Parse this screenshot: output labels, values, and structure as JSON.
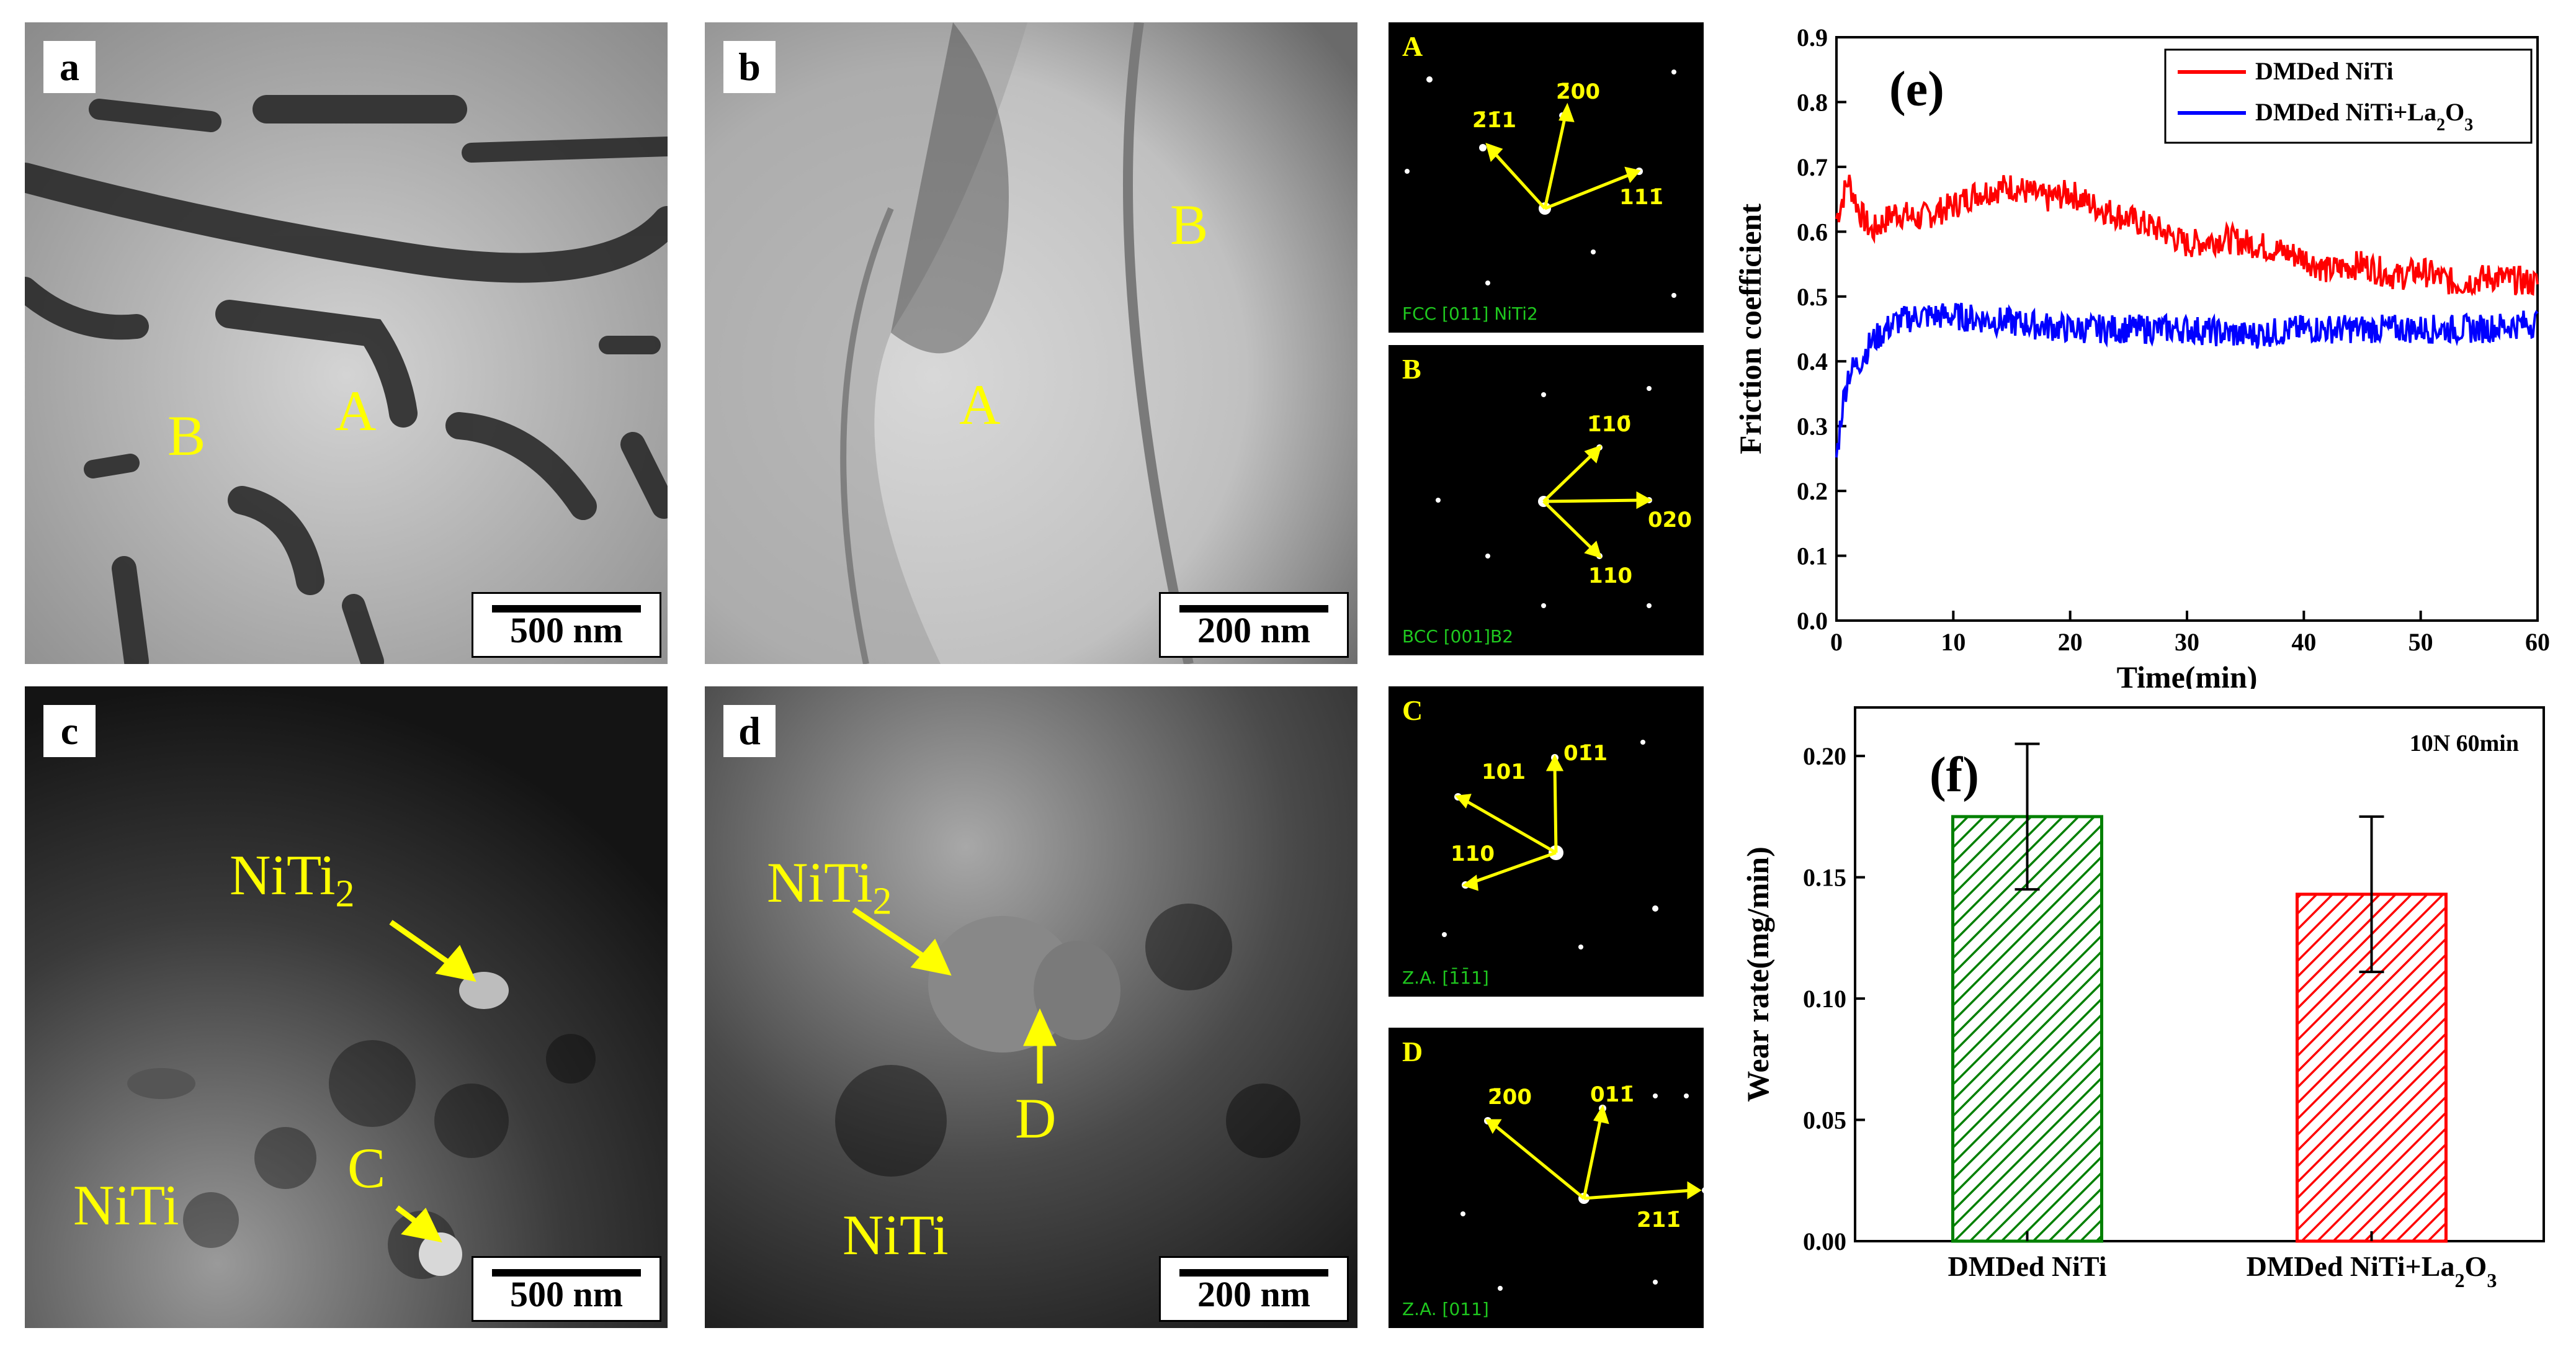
{
  "panels": {
    "a": {
      "label": "a",
      "markers": [
        "B",
        "A"
      ],
      "scale": "500 nm"
    },
    "b": {
      "label": "b",
      "markers": [
        "B",
        "A"
      ],
      "scale": "200 nm"
    },
    "c": {
      "label": "c",
      "markers": [
        "NiTi2",
        "NiTi",
        "C"
      ],
      "scale": "500 nm"
    },
    "d": {
      "label": "d",
      "markers": [
        "NiTi2",
        "D",
        "NiTi"
      ],
      "scale": "200 nm"
    }
  },
  "saed": {
    "A": {
      "letter": "A",
      "zone": "FCC [011] NiTi2",
      "indices": [
        "2̄1̄1",
        "2̄00",
        "111̄"
      ]
    },
    "B": {
      "letter": "B",
      "zone": "BCC [001]B2",
      "indices": [
        "1̄10̄",
        "020",
        "110"
      ]
    },
    "C": {
      "letter": "C",
      "zone": "Z.A. [1̄1̄1]",
      "indices": [
        "101",
        "01̄1",
        "110"
      ]
    },
    "D": {
      "letter": "D",
      "zone": "Z.A. [011]",
      "indices": [
        "2̄00",
        "011̄",
        "211̄"
      ]
    }
  },
  "chart_data": [
    {
      "type": "line",
      "panel_label": "(e)",
      "xlabel": "Time(min)",
      "ylabel": "Friction coefficient",
      "xlim": [
        0,
        60
      ],
      "ylim": [
        0,
        0.9
      ],
      "xticks": [
        "0",
        "10",
        "20",
        "30",
        "40",
        "50",
        "60"
      ],
      "yticks": [
        "0.0",
        "0.1",
        "0.2",
        "0.3",
        "0.4",
        "0.5",
        "0.6",
        "0.7",
        "0.8",
        "0.9"
      ],
      "legend_position": "top-right",
      "series": [
        {
          "name": "DMDed NiTi",
          "color": "#ff0000",
          "x": [
            0,
            1,
            2,
            3,
            5,
            7,
            10,
            12,
            15,
            18,
            20,
            22,
            25,
            28,
            30,
            33,
            36,
            40,
            42,
            45,
            48,
            50,
            53,
            56,
            60
          ],
          "y": [
            0.62,
            0.68,
            0.63,
            0.6,
            0.63,
            0.62,
            0.64,
            0.66,
            0.67,
            0.65,
            0.66,
            0.64,
            0.62,
            0.6,
            0.58,
            0.59,
            0.58,
            0.56,
            0.54,
            0.55,
            0.53,
            0.54,
            0.52,
            0.53,
            0.52
          ]
        },
        {
          "name": "DMDed NiTi+La2O3",
          "color": "#0000ff",
          "x": [
            0,
            0.5,
            1,
            2,
            3,
            5,
            7,
            10,
            15,
            20,
            25,
            30,
            35,
            40,
            45,
            50,
            55,
            60
          ],
          "y": [
            0.25,
            0.33,
            0.38,
            0.4,
            0.43,
            0.46,
            0.47,
            0.47,
            0.46,
            0.45,
            0.45,
            0.45,
            0.44,
            0.45,
            0.45,
            0.45,
            0.45,
            0.46
          ]
        }
      ]
    },
    {
      "type": "bar",
      "panel_label": "(f)",
      "annotation": "10N 60min",
      "xlabel": "",
      "ylabel": "Wear rate(mg/min)",
      "ylim": [
        0,
        0.22
      ],
      "yticks": [
        "0.00",
        "0.05",
        "0.10",
        "0.15",
        "0.20"
      ],
      "categories": [
        "DMDed NiTi",
        "DMDed NiTi+La2O3"
      ],
      "values": [
        0.175,
        0.143
      ],
      "errors": [
        0.03,
        0.032
      ],
      "colors": [
        "#008000",
        "#ff0000"
      ]
    }
  ]
}
